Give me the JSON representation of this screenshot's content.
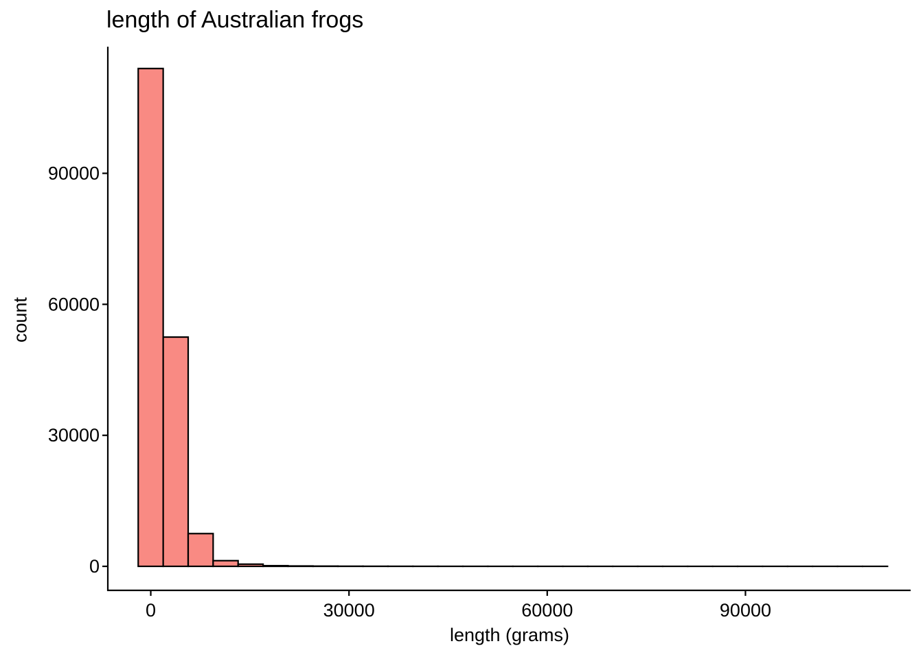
{
  "chart_data": {
    "type": "histogram",
    "title": "length of Australian frogs",
    "xlabel": "length (grams)",
    "ylabel": "count",
    "xlim": [
      -6500,
      115000
    ],
    "ylim": [
      -5500,
      119000
    ],
    "x_ticks": [
      0,
      30000,
      60000,
      90000
    ],
    "x_tick_labels": [
      "0",
      "30000",
      "60000",
      "90000"
    ],
    "y_ticks": [
      0,
      30000,
      60000,
      90000
    ],
    "y_tick_labels": [
      "0",
      "30000",
      "60000",
      "90000"
    ],
    "bin_start": -1900,
    "bin_width": 3780,
    "values": [
      114000,
      52500,
      7500,
      1300,
      500,
      150,
      80,
      50,
      30,
      20,
      15,
      10,
      8,
      6,
      5,
      4,
      3,
      3,
      2,
      2,
      2,
      1,
      1,
      1,
      1,
      1,
      1,
      1,
      1,
      1
    ],
    "fill_color": "#F8766D",
    "fill_opacity": 0.85,
    "stroke_color": "#000000",
    "grid": false,
    "legend": "none"
  }
}
